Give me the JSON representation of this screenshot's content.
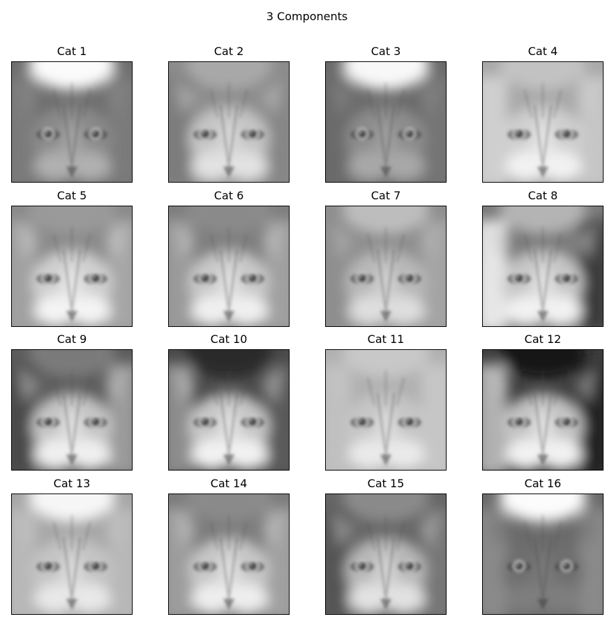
{
  "figure": {
    "title": "3 Components"
  },
  "panels": [
    {
      "label": "Cat 1",
      "bg": "#6e6e6e",
      "cap": "#fbfbfb",
      "face": "#8a8a8a",
      "chin": "#b0b0b0",
      "left": "#7a7a7a",
      "right": "#7a7a7a"
    },
    {
      "label": "Cat 2",
      "bg": "#8c8c8c",
      "cap": "#a8a8a8",
      "face": "#c4c4c4",
      "chin": "#e2e2e2",
      "left": "#7c7c7c",
      "right": "#868686"
    },
    {
      "label": "Cat 3",
      "bg": "#6a6a6a",
      "cap": "#f8f8f8",
      "face": "#8c8c8c",
      "chin": "#a8a8a8",
      "left": "#6a6a6a",
      "right": "#747474"
    },
    {
      "label": "Cat 4",
      "bg": "#a8a8a8",
      "cap": "#c2c2c2",
      "face": "#cfcfcf",
      "chin": "#f2f2f2",
      "left": "#cfcfcf",
      "right": "#c6c6c6"
    },
    {
      "label": "Cat 5",
      "bg": "#8a8a8a",
      "cap": "#9a9a9a",
      "face": "#cfcfcf",
      "chin": "#f4f4f4",
      "left": "#a0a0a0",
      "right": "#a6a6a6"
    },
    {
      "label": "Cat 6",
      "bg": "#7e7e7e",
      "cap": "#8a8a8a",
      "face": "#c8c8c8",
      "chin": "#f0f0f0",
      "left": "#9a9a9a",
      "right": "#a0a0a0"
    },
    {
      "label": "Cat 7",
      "bg": "#8e8e8e",
      "cap": "#bdbdbd",
      "face": "#b8b8b8",
      "chin": "#dedede",
      "left": "#8e8e8e",
      "right": "#a4a4a4"
    },
    {
      "label": "Cat 8",
      "bg": "#7a7a7a",
      "cap": "#b4b4b4",
      "face": "#c6c6c6",
      "chin": "#f2f2f2",
      "left": "#e6e6e6",
      "right": "#3a3a3a"
    },
    {
      "label": "Cat 9",
      "bg": "#5c5c5c",
      "cap": "#7a7a7a",
      "face": "#c4c4c4",
      "chin": "#f0f0f0",
      "left": "#4a4a4a",
      "right": "#9a9a9a"
    },
    {
      "label": "Cat 10",
      "bg": "#4a4a4a",
      "cap": "#2a2a2a",
      "face": "#c6c6c6",
      "chin": "#f2f2f2",
      "left": "#8c8c8c",
      "right": "#5a5a5a"
    },
    {
      "label": "Cat 11",
      "bg": "#b0b0b0",
      "cap": "#c8c8c8",
      "face": "#c6c6c6",
      "chin": "#eaeaea",
      "left": "#c0c0c0",
      "right": "#c6c6c6"
    },
    {
      "label": "Cat 12",
      "bg": "#3e3e3e",
      "cap": "#141414",
      "face": "#c2c2c2",
      "chin": "#f2f2f2",
      "left": "#b0b0b0",
      "right": "#202020"
    },
    {
      "label": "Cat 13",
      "bg": "#a6a6a6",
      "cap": "#f6f6f6",
      "face": "#c4c4c4",
      "chin": "#e8e8e8",
      "left": "#b8b8b8",
      "right": "#b8b8b8"
    },
    {
      "label": "Cat 14",
      "bg": "#7c7c7c",
      "cap": "#8a8a8a",
      "face": "#c6c6c6",
      "chin": "#eeeeee",
      "left": "#9c9c9c",
      "right": "#a0a0a0"
    },
    {
      "label": "Cat 15",
      "bg": "#666666",
      "cap": "#8a8a8a",
      "face": "#b8b8b8",
      "chin": "#e2e2e2",
      "left": "#555555",
      "right": "#777777"
    },
    {
      "label": "Cat 16",
      "bg": "#6a6a6a",
      "cap": "#fcfcfc",
      "face": "#6e6e6e",
      "chin": "#7e7e7e",
      "left": "#8a8a8a",
      "right": "#8a8a8a"
    }
  ]
}
